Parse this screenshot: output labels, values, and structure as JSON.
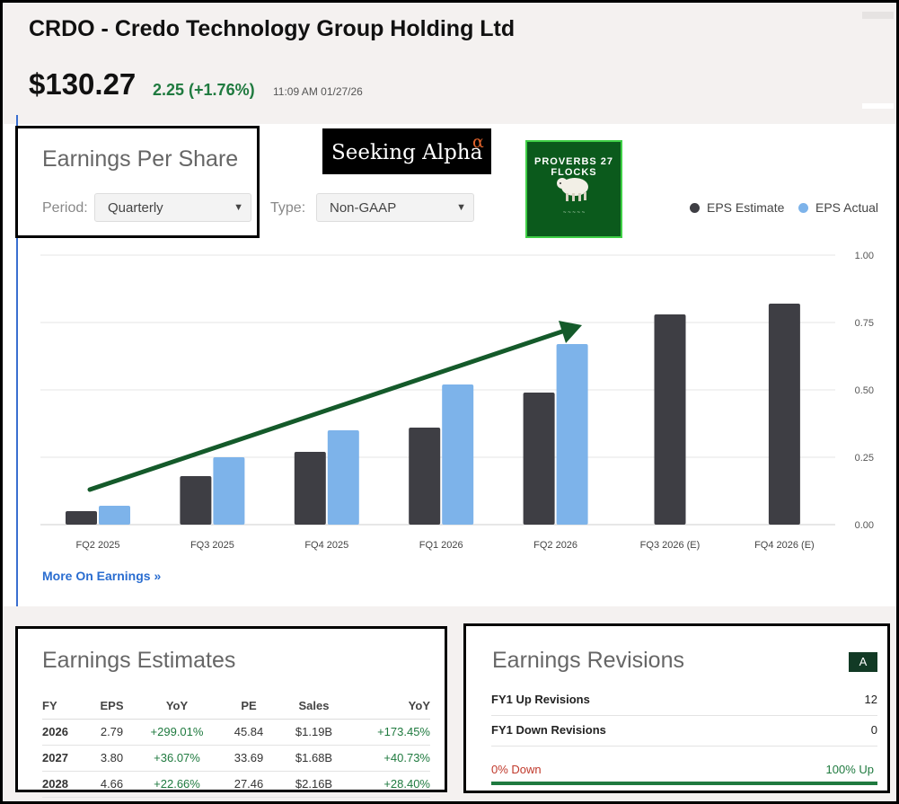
{
  "header": {
    "title": "CRDO - Credo Technology Group Holding Ltd",
    "price": "$130.27",
    "change": "2.25 (+1.76%)",
    "timestamp": "11:09 AM 01/27/26"
  },
  "eps": {
    "title": "Earnings Per Share",
    "period_label": "Period:",
    "period_value": "Quarterly",
    "type_label": "Type:",
    "type_value": "Non-GAAP",
    "more_link": "More On Earnings »"
  },
  "logos": {
    "seeking_alpha": "Seeking Alpha",
    "seeking_alpha_mark": "α",
    "proverbs": "PROVERBS 27 FLOCKS"
  },
  "chart_data": {
    "type": "bar",
    "categories": [
      "FQ2 2025",
      "FQ3 2025",
      "FQ4 2025",
      "FQ1 2026",
      "FQ2 2026",
      "FQ3 2026 (E)",
      "FQ4 2026 (E)"
    ],
    "series": [
      {
        "name": "EPS Estimate",
        "color": "#3e3e44",
        "values": [
          0.05,
          0.18,
          0.27,
          0.36,
          0.49,
          0.78,
          0.82
        ]
      },
      {
        "name": "EPS Actual",
        "color": "#7db3ea",
        "values": [
          0.07,
          0.25,
          0.35,
          0.52,
          0.67,
          null,
          null
        ]
      }
    ],
    "y_ticks": [
      "0.00",
      "0.25",
      "0.50",
      "0.75",
      "1.00"
    ],
    "ylim": [
      0,
      1.0
    ],
    "grid": true,
    "legend_position": "top-right",
    "annotation": "green upward trend arrow"
  },
  "estimates": {
    "title": "Earnings Estimates",
    "columns": [
      "FY",
      "EPS",
      "YoY",
      "PE",
      "Sales",
      "YoY"
    ],
    "rows": [
      [
        "2026",
        "2.79",
        "+299.01%",
        "45.84",
        "$1.19B",
        "+173.45%"
      ],
      [
        "2027",
        "3.80",
        "+36.07%",
        "33.69",
        "$1.68B",
        "+40.73%"
      ],
      [
        "2028",
        "4.66",
        "+22.66%",
        "27.46",
        "$2.16B",
        "+28.40%"
      ]
    ]
  },
  "revisions": {
    "title": "Earnings Revisions",
    "grade": "A",
    "up_label": "FY1 Up Revisions",
    "up_value": "12",
    "down_label": "FY1 Down Revisions",
    "down_value": "0",
    "pct_down": "0% Down",
    "pct_up": "100% Up",
    "up_fraction": 1.0
  },
  "colors": {
    "accent_green": "#1f7a3f",
    "link_blue": "#2a6dd0",
    "trend_arrow": "#145a2a"
  }
}
